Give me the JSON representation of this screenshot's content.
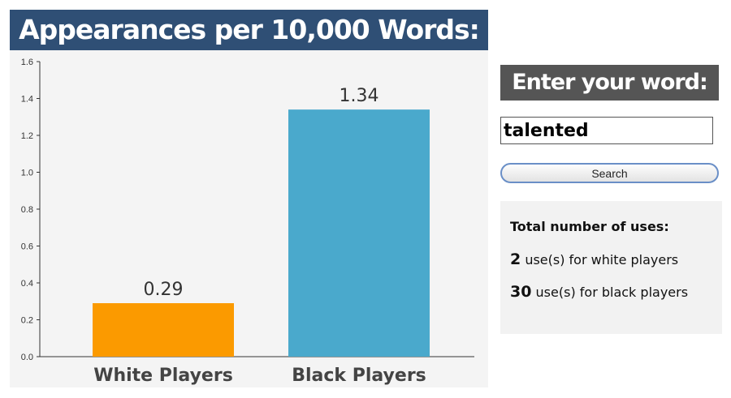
{
  "chart_data": {
    "type": "bar",
    "title": "Appearances per 10,000 Words:",
    "categories": [
      "White Players",
      "Black Players"
    ],
    "values": [
      0.29,
      1.34
    ],
    "value_labels": [
      "0.29",
      "1.34"
    ],
    "ylim": [
      0,
      1.6
    ],
    "yticks": [
      "0.0",
      "0.2",
      "0.4",
      "0.6",
      "0.8",
      "1.0",
      "1.2",
      "1.4",
      "1.6"
    ],
    "xlabel": "",
    "ylabel": "",
    "grid": false,
    "colors": [
      "#fb9a00",
      "#4aa9cc"
    ],
    "background": "#f4f4f4"
  },
  "search": {
    "label": "Enter your word:",
    "value": "talented",
    "button_label": "Search"
  },
  "stats": {
    "heading": "Total number of uses:",
    "rows": [
      {
        "count": "2",
        "text": " use(s) for white players"
      },
      {
        "count": "30",
        "text": " use(s) for black players"
      }
    ]
  }
}
